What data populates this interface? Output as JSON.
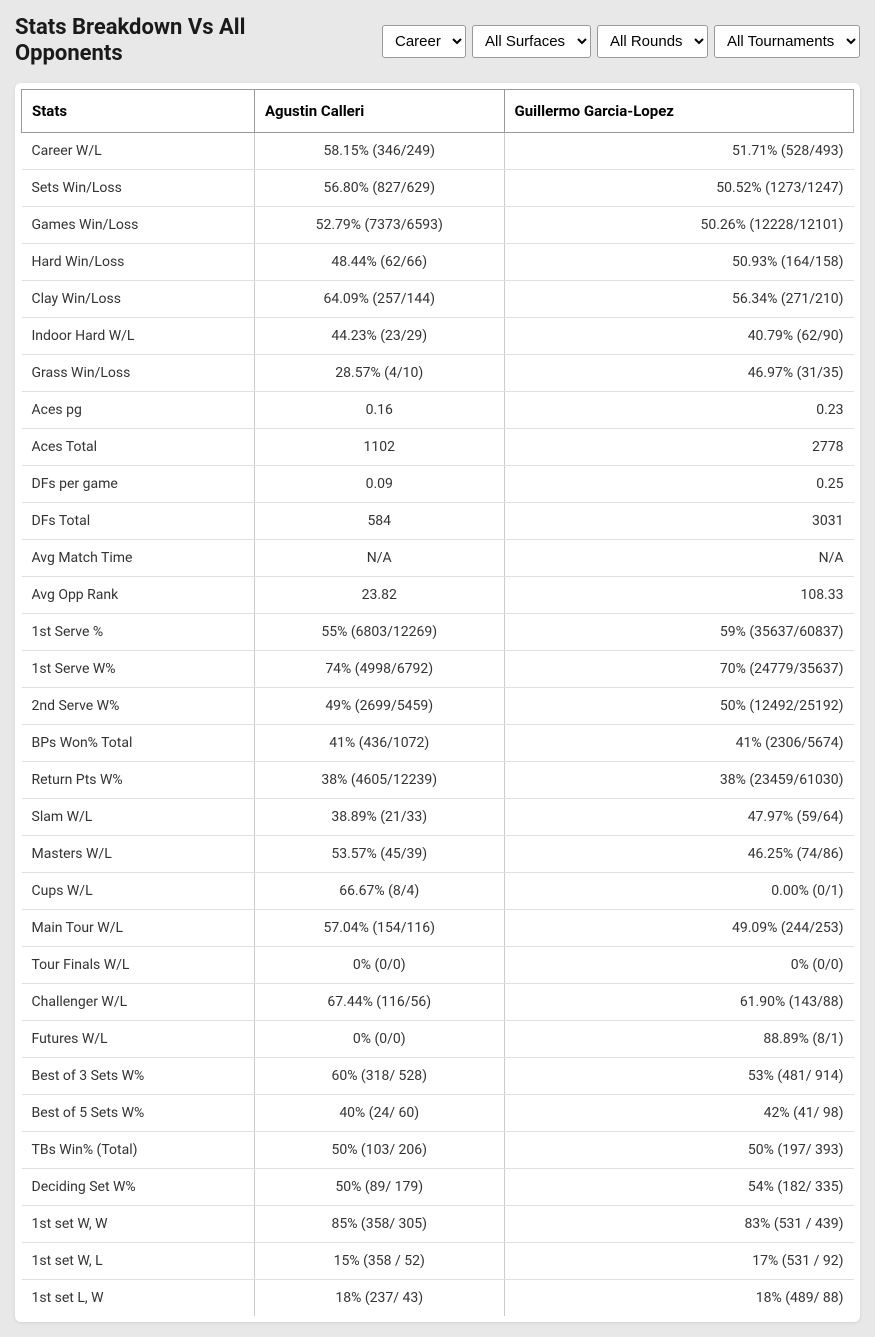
{
  "header": {
    "title": "Stats Breakdown Vs All Opponents",
    "filters": {
      "timeframe": {
        "selected": "Career",
        "options": [
          "Career"
        ]
      },
      "surface": {
        "selected": "All Surfaces",
        "options": [
          "All Surfaces"
        ]
      },
      "rounds": {
        "selected": "All Rounds",
        "options": [
          "All Rounds"
        ]
      },
      "tournaments": {
        "selected": "All Tournaments",
        "options": [
          "All Tournaments"
        ]
      }
    }
  },
  "table": {
    "columns": {
      "stats": "Stats",
      "player1": "Agustin Calleri",
      "player2": "Guillermo Garcia-Lopez"
    },
    "rows": [
      {
        "stat": "Career W/L",
        "p1": "58.15% (346/249)",
        "p2": "51.71% (528/493)"
      },
      {
        "stat": "Sets Win/Loss",
        "p1": "56.80% (827/629)",
        "p2": "50.52% (1273/1247)"
      },
      {
        "stat": "Games Win/Loss",
        "p1": "52.79% (7373/6593)",
        "p2": "50.26% (12228/12101)"
      },
      {
        "stat": "Hard Win/Loss",
        "p1": "48.44% (62/66)",
        "p2": "50.93% (164/158)"
      },
      {
        "stat": "Clay Win/Loss",
        "p1": "64.09% (257/144)",
        "p2": "56.34% (271/210)"
      },
      {
        "stat": "Indoor Hard W/L",
        "p1": "44.23% (23/29)",
        "p2": "40.79% (62/90)"
      },
      {
        "stat": "Grass Win/Loss",
        "p1": "28.57% (4/10)",
        "p2": "46.97% (31/35)"
      },
      {
        "stat": "Aces pg",
        "p1": "0.16",
        "p2": "0.23"
      },
      {
        "stat": "Aces Total",
        "p1": "1102",
        "p2": "2778"
      },
      {
        "stat": "DFs per game",
        "p1": "0.09",
        "p2": "0.25"
      },
      {
        "stat": "DFs Total",
        "p1": "584",
        "p2": "3031"
      },
      {
        "stat": "Avg Match Time",
        "p1": "N/A",
        "p2": "N/A"
      },
      {
        "stat": "Avg Opp Rank",
        "p1": "23.82",
        "p2": "108.33"
      },
      {
        "stat": "1st Serve %",
        "p1": "55% (6803/12269)",
        "p2": "59% (35637/60837)"
      },
      {
        "stat": "1st Serve W%",
        "p1": "74% (4998/6792)",
        "p2": "70% (24779/35637)"
      },
      {
        "stat": "2nd Serve W%",
        "p1": "49% (2699/5459)",
        "p2": "50% (12492/25192)"
      },
      {
        "stat": "BPs Won% Total",
        "p1": "41% (436/1072)",
        "p2": "41% (2306/5674)"
      },
      {
        "stat": "Return Pts W%",
        "p1": "38% (4605/12239)",
        "p2": "38% (23459/61030)"
      },
      {
        "stat": "Slam W/L",
        "p1": "38.89% (21/33)",
        "p2": "47.97% (59/64)"
      },
      {
        "stat": "Masters W/L",
        "p1": "53.57% (45/39)",
        "p2": "46.25% (74/86)"
      },
      {
        "stat": "Cups W/L",
        "p1": "66.67% (8/4)",
        "p2": "0.00% (0/1)"
      },
      {
        "stat": "Main Tour W/L",
        "p1": "57.04% (154/116)",
        "p2": "49.09% (244/253)"
      },
      {
        "stat": "Tour Finals W/L",
        "p1": "0% (0/0)",
        "p2": "0% (0/0)"
      },
      {
        "stat": "Challenger W/L",
        "p1": "67.44% (116/56)",
        "p2": "61.90% (143/88)"
      },
      {
        "stat": "Futures W/L",
        "p1": "0% (0/0)",
        "p2": "88.89% (8/1)"
      },
      {
        "stat": "Best of 3 Sets W%",
        "p1": "60% (318/ 528)",
        "p2": "53% (481/ 914)"
      },
      {
        "stat": "Best of 5 Sets W%",
        "p1": "40% (24/ 60)",
        "p2": "42% (41/ 98)"
      },
      {
        "stat": "TBs Win% (Total)",
        "p1": "50% (103/ 206)",
        "p2": "50% (197/ 393)"
      },
      {
        "stat": "Deciding Set W%",
        "p1": "50% (89/ 179)",
        "p2": "54% (182/ 335)"
      },
      {
        "stat": "1st set W, W",
        "p1": "85% (358/ 305)",
        "p2": "83% (531 / 439)"
      },
      {
        "stat": "1st set W, L",
        "p1": "15% (358 / 52)",
        "p2": "17% (531 / 92)"
      },
      {
        "stat": "1st set L, W",
        "p1": "18% (237/ 43)",
        "p2": "18% (489/ 88)"
      }
    ]
  },
  "styling": {
    "background_color": "#e8e8e8",
    "table_background": "#ffffff",
    "border_color": "#999999",
    "row_border_color": "#e0e0e0",
    "text_color": "#1a1a1a",
    "cell_text_color": "#333333",
    "title_fontsize": 22,
    "header_fontsize": 15,
    "cell_fontsize": 14
  }
}
